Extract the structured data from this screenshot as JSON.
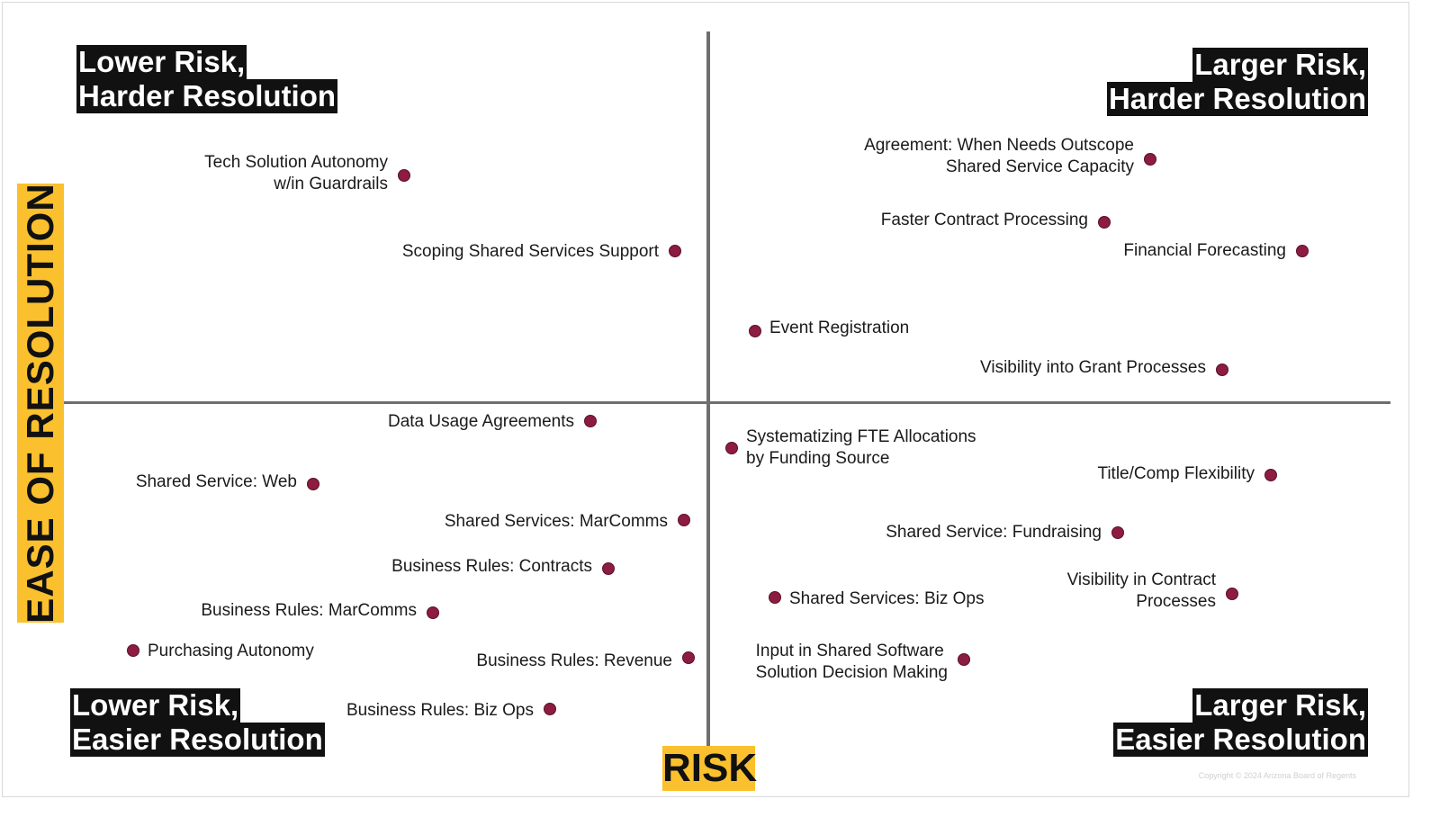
{
  "quadrants": {
    "top_left": [
      "Lower Risk,",
      "Harder Resolution"
    ],
    "top_right": [
      "Larger Risk,",
      "Harder Resolution"
    ],
    "bottom_left": [
      "Lower Risk,",
      "Easier Resolution"
    ],
    "bottom_right": [
      "Larger Risk,",
      "Easier Resolution"
    ]
  },
  "axes": {
    "y_label": "EASE OF RESOLUTION",
    "x_label": "RISK"
  },
  "colors": {
    "dot": "#8c1d40",
    "label_bg": "#fbc02d",
    "quadrant_bg": "#111111",
    "axis": "#6e6e6e"
  },
  "points": [
    {
      "lines": [
        "Tech Solution Autonomy",
        "w/in Guardrails"
      ]
    },
    {
      "lines": [
        "Scoping Shared Services Support"
      ]
    },
    {
      "lines": [
        "Agreement: When Needs Outscope",
        "Shared Service Capacity"
      ]
    },
    {
      "lines": [
        "Faster Contract Processing"
      ]
    },
    {
      "lines": [
        "Financial Forecasting"
      ]
    },
    {
      "lines": [
        "Event Registration"
      ]
    },
    {
      "lines": [
        "Visibility into Grant Processes"
      ]
    },
    {
      "lines": [
        "Data Usage Agreements"
      ]
    },
    {
      "lines": [
        "Shared Service: Web"
      ]
    },
    {
      "lines": [
        "Shared Services: MarComms"
      ]
    },
    {
      "lines": [
        "Business Rules: Contracts"
      ]
    },
    {
      "lines": [
        "Business Rules: MarComms"
      ]
    },
    {
      "lines": [
        "Purchasing Autonomy"
      ]
    },
    {
      "lines": [
        "Business Rules: Revenue"
      ]
    },
    {
      "lines": [
        "Business Rules: Biz Ops"
      ]
    },
    {
      "lines": [
        "Systematizing FTE Allocations",
        "by Funding Source"
      ]
    },
    {
      "lines": [
        "Title/Comp Flexibility"
      ]
    },
    {
      "lines": [
        "Shared Service: Fundraising"
      ]
    },
    {
      "lines": [
        "Visibility in Contract",
        "Processes"
      ]
    },
    {
      "lines": [
        "Shared Services: Biz Ops"
      ]
    },
    {
      "lines": [
        "Input in Shared Software",
        "Solution Decision Making"
      ]
    }
  ],
  "copyright": "Copyright © 2024 Arizona Board of Regents"
}
